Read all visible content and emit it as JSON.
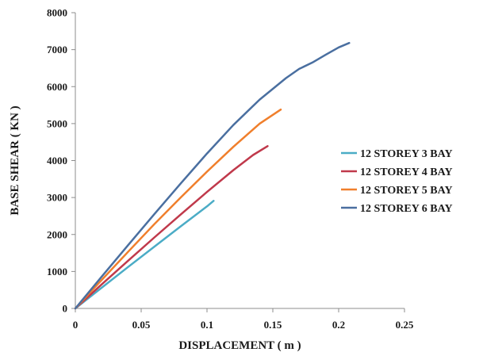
{
  "chart_data": {
    "type": "line",
    "title": "",
    "xlabel": "DISPLACEMENT ( m )",
    "ylabel": "BASE SHEAR ( KN )",
    "xlim": [
      0,
      0.25
    ],
    "ylim": [
      0,
      8000
    ],
    "xticks": [
      0,
      0.05,
      0.1,
      0.15,
      0.2,
      0.25
    ],
    "xtick_labels": [
      "0",
      "0.05",
      "0.1",
      "0.15",
      "0.2",
      "0.25"
    ],
    "yticks": [
      0,
      1000,
      2000,
      3000,
      4000,
      5000,
      6000,
      7000,
      8000
    ],
    "ytick_labels": [
      "0",
      "1000",
      "2000",
      "3000",
      "4000",
      "5000",
      "6000",
      "7000",
      "8000"
    ],
    "grid": false,
    "legend_position": "right",
    "series": [
      {
        "name": "12 STOREY 3 BAY",
        "color": "#4bacc6",
        "points": [
          [
            0,
            0
          ],
          [
            0.02,
            560
          ],
          [
            0.04,
            1120
          ],
          [
            0.06,
            1670
          ],
          [
            0.08,
            2220
          ],
          [
            0.1,
            2760
          ],
          [
            0.105,
            2910
          ]
        ]
      },
      {
        "name": "12 STOREY 4 BAY",
        "color": "#c0394b",
        "points": [
          [
            0,
            0
          ],
          [
            0.02,
            650
          ],
          [
            0.04,
            1290
          ],
          [
            0.06,
            1920
          ],
          [
            0.08,
            2540
          ],
          [
            0.1,
            3150
          ],
          [
            0.12,
            3740
          ],
          [
            0.135,
            4150
          ],
          [
            0.146,
            4390
          ]
        ]
      },
      {
        "name": "12 STOREY 5 BAY",
        "color": "#f07f2c",
        "points": [
          [
            0,
            0
          ],
          [
            0.02,
            770
          ],
          [
            0.04,
            1530
          ],
          [
            0.06,
            2280
          ],
          [
            0.08,
            3000
          ],
          [
            0.1,
            3700
          ],
          [
            0.12,
            4370
          ],
          [
            0.14,
            5000
          ],
          [
            0.156,
            5380
          ]
        ]
      },
      {
        "name": "12 STOREY 6 BAY",
        "color": "#4a6fa0",
        "points": [
          [
            0,
            0
          ],
          [
            0.02,
            860
          ],
          [
            0.04,
            1710
          ],
          [
            0.06,
            2550
          ],
          [
            0.08,
            3380
          ],
          [
            0.1,
            4190
          ],
          [
            0.12,
            4960
          ],
          [
            0.14,
            5650
          ],
          [
            0.16,
            6230
          ],
          [
            0.17,
            6480
          ],
          [
            0.18,
            6650
          ],
          [
            0.19,
            6860
          ],
          [
            0.2,
            7060
          ],
          [
            0.208,
            7180
          ]
        ]
      }
    ]
  }
}
